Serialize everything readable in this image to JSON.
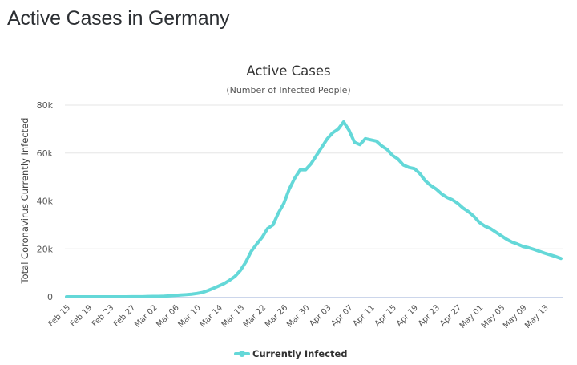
{
  "page": {
    "title": "Active Cases in Germany"
  },
  "chart_data": {
    "type": "line",
    "title": "Active Cases",
    "subtitle": "(Number of Infected People)",
    "xlabel": "",
    "ylabel": "Total Coronavirus Currently Infected",
    "ylim": [
      0,
      80000
    ],
    "yticks": [
      0,
      20000,
      40000,
      60000,
      80000
    ],
    "ytick_labels": [
      "0",
      "20k",
      "40k",
      "60k",
      "80k"
    ],
    "grid": true,
    "legend_position": "bottom-center",
    "xtick_labels": [
      "Feb 15",
      "Feb 19",
      "Feb 23",
      "Feb 27",
      "Mar 02",
      "Mar 06",
      "Mar 10",
      "Mar 14",
      "Mar 18",
      "Mar 22",
      "Mar 26",
      "Mar 30",
      "Apr 03",
      "Apr 07",
      "Apr 11",
      "Apr 15",
      "Apr 19",
      "Apr 23",
      "Apr 27",
      "May 01",
      "May 05",
      "May 09",
      "May 13"
    ],
    "xtick_every": 4,
    "x": [
      "Feb 15",
      "Feb 16",
      "Feb 17",
      "Feb 18",
      "Feb 19",
      "Feb 20",
      "Feb 21",
      "Feb 22",
      "Feb 23",
      "Feb 24",
      "Feb 25",
      "Feb 26",
      "Feb 27",
      "Feb 28",
      "Feb 29",
      "Mar 01",
      "Mar 02",
      "Mar 03",
      "Mar 04",
      "Mar 05",
      "Mar 06",
      "Mar 07",
      "Mar 08",
      "Mar 09",
      "Mar 10",
      "Mar 11",
      "Mar 12",
      "Mar 13",
      "Mar 14",
      "Mar 15",
      "Mar 16",
      "Mar 17",
      "Mar 18",
      "Mar 19",
      "Mar 20",
      "Mar 21",
      "Mar 22",
      "Mar 23",
      "Mar 24",
      "Mar 25",
      "Mar 26",
      "Mar 27",
      "Mar 28",
      "Mar 29",
      "Mar 30",
      "Mar 31",
      "Apr 01",
      "Apr 02",
      "Apr 03",
      "Apr 04",
      "Apr 05",
      "Apr 06",
      "Apr 07",
      "Apr 08",
      "Apr 09",
      "Apr 10",
      "Apr 11",
      "Apr 12",
      "Apr 13",
      "Apr 14",
      "Apr 15",
      "Apr 16",
      "Apr 17",
      "Apr 18",
      "Apr 19",
      "Apr 20",
      "Apr 21",
      "Apr 22",
      "Apr 23",
      "Apr 24",
      "Apr 25",
      "Apr 26",
      "Apr 27",
      "Apr 28",
      "Apr 29",
      "Apr 30",
      "May 01",
      "May 02",
      "May 03",
      "May 04",
      "May 05",
      "May 06",
      "May 07",
      "May 08",
      "May 09",
      "May 10",
      "May 11",
      "May 12",
      "May 13",
      "May 14",
      "May 15",
      "May 16"
    ],
    "series": [
      {
        "name": "Currently Infected",
        "color": "#64d8d8",
        "values": [
          2,
          2,
          2,
          2,
          2,
          2,
          2,
          2,
          2,
          2,
          2,
          11,
          30,
          40,
          60,
          120,
          150,
          180,
          240,
          400,
          600,
          750,
          900,
          1100,
          1400,
          1800,
          2600,
          3500,
          4500,
          5500,
          6900,
          8500,
          11000,
          14500,
          19000,
          22000,
          24800,
          28500,
          30000,
          35000,
          39000,
          45000,
          49500,
          53000,
          53000,
          55500,
          59000,
          62500,
          66000,
          68500,
          70000,
          73000,
          69500,
          64500,
          63500,
          66000,
          65500,
          65000,
          63000,
          61500,
          59000,
          57500,
          55000,
          54000,
          53500,
          51500,
          48500,
          46500,
          45000,
          43000,
          41500,
          40500,
          39000,
          37000,
          35500,
          33500,
          31000,
          29500,
          28500,
          27000,
          25500,
          24000,
          22800,
          22000,
          21000,
          20500,
          19800,
          19000,
          18200,
          17500,
          16800,
          16000
        ]
      }
    ]
  }
}
